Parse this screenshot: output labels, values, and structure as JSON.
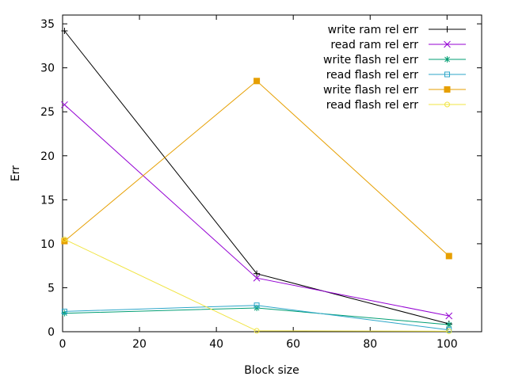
{
  "chart_data": {
    "type": "line",
    "title": "",
    "xlabel": "Block size",
    "ylabel": "Err",
    "xlim": [
      0,
      109
    ],
    "ylim": [
      0,
      36
    ],
    "xticks": [
      0,
      20,
      40,
      60,
      80,
      100
    ],
    "yticks": [
      0,
      5,
      10,
      15,
      20,
      25,
      30,
      35
    ],
    "legend_position": "top-right",
    "grid": false,
    "series": [
      {
        "name": "write ram rel err",
        "color": "#000000",
        "marker": "plus",
        "x": [
          0.5,
          50.5,
          100.5
        ],
        "y": [
          34.2,
          6.6,
          0.9
        ]
      },
      {
        "name": "read ram rel err",
        "color": "#9400d3",
        "marker": "cross",
        "x": [
          0.5,
          50.5,
          100.5
        ],
        "y": [
          25.8,
          6.1,
          1.8
        ]
      },
      {
        "name": "write flash rel err",
        "color": "#009e73",
        "marker": "star",
        "x": [
          0.5,
          50.5,
          100.5
        ],
        "y": [
          2.1,
          2.7,
          0.8
        ]
      },
      {
        "name": "read flash rel err",
        "color": "#2ca6c9",
        "marker": "box",
        "x": [
          0.5,
          50.5,
          100.5
        ],
        "y": [
          2.3,
          3.0,
          0.2
        ]
      },
      {
        "name": "write flash rel err",
        "color": "#e69f00",
        "marker": "filled-box",
        "x": [
          0.5,
          50.5,
          100.5
        ],
        "y": [
          10.3,
          28.5,
          8.6
        ]
      },
      {
        "name": "read flash rel err",
        "color": "#f0e442",
        "marker": "circle",
        "x": [
          0.5,
          50.5,
          100.5
        ],
        "y": [
          10.5,
          0.1,
          0.05
        ]
      }
    ]
  }
}
